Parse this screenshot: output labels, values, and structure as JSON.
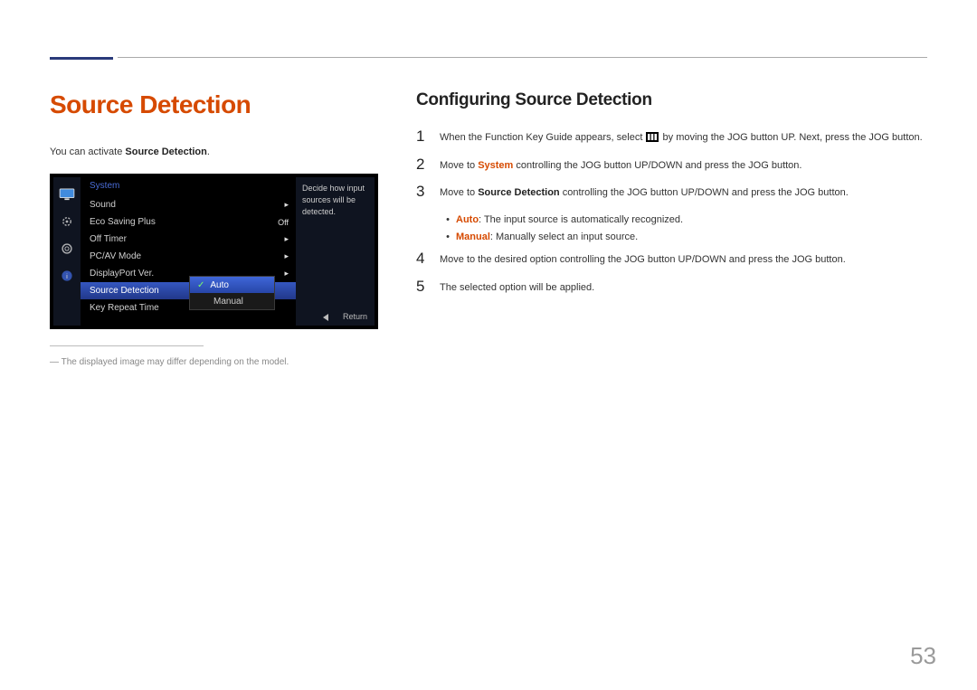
{
  "page": {
    "title": "Source Detection",
    "intro_prefix": "You can activate ",
    "intro_bold": "Source Detection",
    "intro_suffix": ".",
    "page_number": "53"
  },
  "osd": {
    "menu_title": "System",
    "rows": [
      {
        "label": "Sound",
        "value": "",
        "arrow": true,
        "selected": false
      },
      {
        "label": "Eco Saving Plus",
        "value": "Off",
        "arrow": false,
        "selected": false
      },
      {
        "label": "Off Timer",
        "value": "",
        "arrow": true,
        "selected": false
      },
      {
        "label": "PC/AV Mode",
        "value": "",
        "arrow": true,
        "selected": false
      },
      {
        "label": "DisplayPort Ver.",
        "value": "",
        "arrow": true,
        "selected": false
      },
      {
        "label": "Source Detection",
        "value": "",
        "arrow": false,
        "selected": true
      },
      {
        "label": "Key Repeat Time",
        "value": "",
        "arrow": false,
        "selected": false
      }
    ],
    "tip_text": "Decide how input sources will be detected.",
    "footer_return": "Return",
    "dropdown": {
      "options": [
        {
          "label": "Auto",
          "selected": true
        },
        {
          "label": "Manual",
          "selected": false
        }
      ]
    }
  },
  "footnote": {
    "text": "The displayed image may differ depending on the model."
  },
  "right": {
    "heading": "Configuring Source Detection",
    "steps": [
      {
        "num": "1",
        "parts": [
          "When the Function Key Guide appears, select ",
          "ICON",
          " by moving the JOG button UP. Next, press the JOG button."
        ]
      },
      {
        "num": "2",
        "parts": [
          "Move to ",
          "<red>System</red>",
          " controlling the JOG button UP/DOWN and press the JOG button."
        ]
      },
      {
        "num": "3",
        "parts": [
          "Move to ",
          "<b>Source Detection</b>",
          " controlling the JOG button UP/DOWN and press the JOG button."
        ]
      },
      {
        "num": "4",
        "parts": [
          "Move to the desired option controlling the JOG button UP/DOWN and press the JOG button."
        ]
      },
      {
        "num": "5",
        "parts": [
          "The selected option will be applied."
        ]
      }
    ],
    "bullets": [
      {
        "key": "Auto",
        "text": ": The input source is automatically recognized."
      },
      {
        "key": "Manual",
        "text": ": Manually select an input source."
      }
    ]
  },
  "colors": {
    "accent_red": "#d64a00",
    "osd_blue": "#3557c0",
    "text": "#333333"
  }
}
